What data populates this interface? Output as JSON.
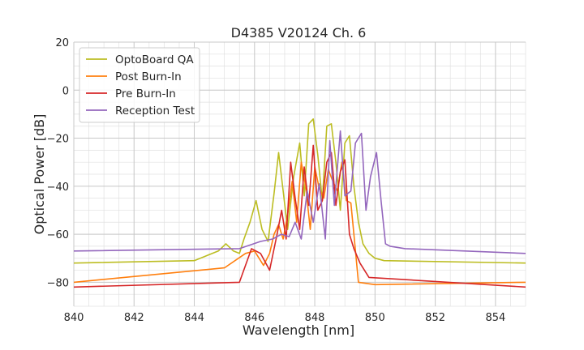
{
  "chart_data": {
    "type": "line",
    "title": "D4385 V20124 Ch. 6",
    "xlabel": "Wavelength [nm]",
    "ylabel": "Optical Power [dB]",
    "xlim": [
      840,
      855
    ],
    "ylim": [
      -90,
      20
    ],
    "xticks": [
      840,
      842,
      844,
      846,
      848,
      850,
      852,
      854
    ],
    "yticks": [
      -80,
      -60,
      -40,
      -20,
      0,
      20
    ],
    "xtick_labels": [
      "840",
      "842",
      "844",
      "846",
      "848",
      "850",
      "852",
      "854"
    ],
    "ytick_labels": [
      "−80",
      "−60",
      "−40",
      "−20",
      "0",
      "20"
    ],
    "grid": true,
    "legend_position": "top-left",
    "series": [
      {
        "name": "OptoBoard QA",
        "color": "#bcbd22",
        "x": [
          840.0,
          844.0,
          844.8,
          845.05,
          845.3,
          845.5,
          845.65,
          845.85,
          846.05,
          846.25,
          846.45,
          846.65,
          846.8,
          846.95,
          847.1,
          847.3,
          847.5,
          847.65,
          847.8,
          847.95,
          848.1,
          848.25,
          848.4,
          848.55,
          848.7,
          848.85,
          849.0,
          849.15,
          849.3,
          849.45,
          849.6,
          849.8,
          850.0,
          850.3,
          855.0
        ],
        "values": [
          -72,
          -71,
          -67,
          -64,
          -67,
          -68,
          -62,
          -55,
          -46,
          -58,
          -63,
          -43,
          -26,
          -42,
          -58,
          -36,
          -22,
          -44,
          -14,
          -12,
          -27,
          -46,
          -15,
          -14,
          -30,
          -50,
          -22,
          -19,
          -40,
          -55,
          -64,
          -68,
          -70,
          -71,
          -72
        ]
      },
      {
        "name": "Post Burn-In",
        "color": "#ff7f0e",
        "x": [
          840.0,
          845.0,
          845.7,
          846.0,
          846.3,
          846.5,
          846.65,
          846.8,
          846.95,
          847.1,
          847.25,
          847.4,
          847.55,
          847.7,
          847.85,
          848.0,
          848.15,
          848.3,
          848.45,
          848.6,
          848.75,
          848.9,
          849.05,
          849.2,
          849.3,
          849.45,
          850.0,
          855.0
        ],
        "values": [
          -80,
          -74,
          -68,
          -67,
          -73,
          -68,
          -60,
          -56,
          -62,
          -52,
          -38,
          -55,
          -30,
          -40,
          -58,
          -32,
          -41,
          -45,
          -33,
          -38,
          -42,
          -30,
          -46,
          -47,
          -60,
          -80,
          -81,
          -80
        ]
      },
      {
        "name": "Pre Burn-In",
        "color": "#d62728",
        "x": [
          840.0,
          845.5,
          845.9,
          846.2,
          846.5,
          846.75,
          846.9,
          847.05,
          847.2,
          847.35,
          847.5,
          847.65,
          847.8,
          847.95,
          848.1,
          848.25,
          848.4,
          848.55,
          848.7,
          848.85,
          849.0,
          849.15,
          849.3,
          849.5,
          849.8,
          855.0
        ],
        "values": [
          -82,
          -80,
          -66,
          -68,
          -75,
          -60,
          -50,
          -62,
          -30,
          -45,
          -58,
          -32,
          -48,
          -23,
          -50,
          -46,
          -30,
          -26,
          -48,
          -34,
          -29,
          -60,
          -66,
          -72,
          -78,
          -82
        ]
      },
      {
        "name": "Reception Test",
        "color": "#9467bd",
        "x": [
          840.0,
          845.5,
          846.2,
          846.6,
          846.9,
          847.15,
          847.35,
          847.55,
          847.75,
          847.95,
          848.15,
          848.35,
          848.5,
          848.65,
          848.85,
          849.0,
          849.2,
          849.35,
          849.55,
          849.7,
          849.85,
          850.05,
          850.2,
          850.35,
          850.5,
          851.0,
          855.0
        ],
        "values": [
          -67,
          -66,
          -63,
          -62,
          -60,
          -61,
          -55,
          -62,
          -42,
          -55,
          -39,
          -62,
          -21,
          -48,
          -17,
          -44,
          -42,
          -22,
          -18,
          -50,
          -36,
          -26,
          -46,
          -64,
          -65,
          -66,
          -68
        ]
      }
    ]
  }
}
